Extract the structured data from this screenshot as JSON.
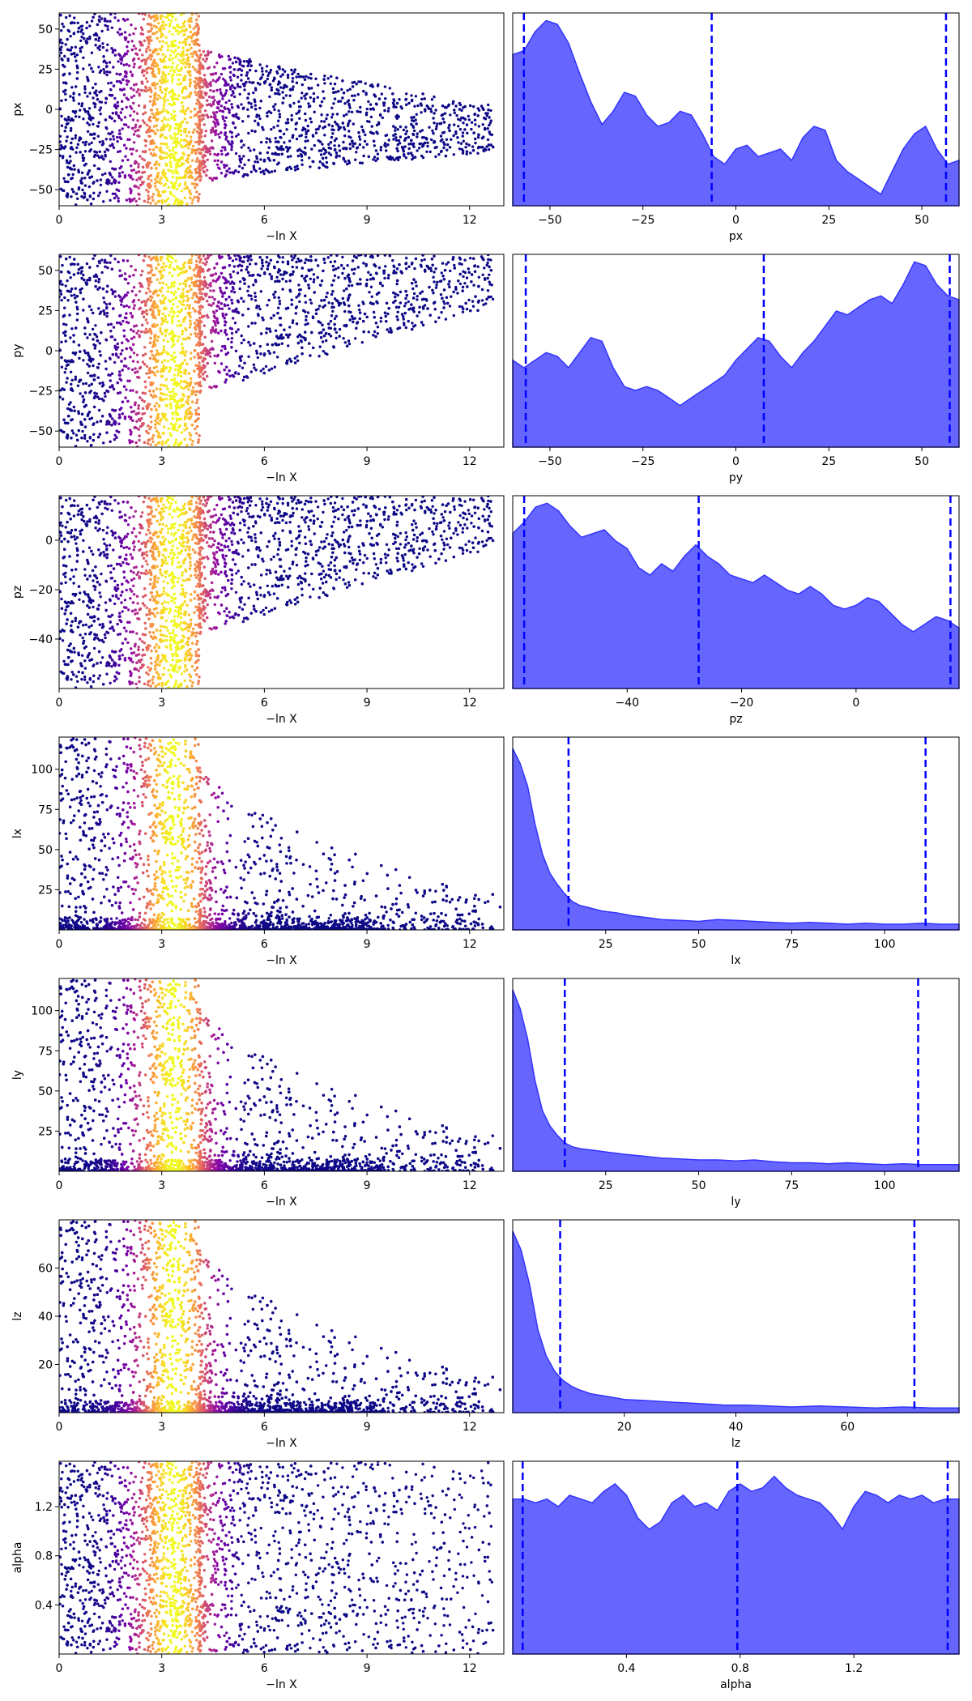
{
  "chart_data": {
    "type": "trace-plot",
    "trace_x_label": "−ln X",
    "trace_x_ticks": [
      0,
      3,
      6,
      9,
      12
    ],
    "trace_x_range": [
      0,
      13
    ],
    "colormap": "plasma",
    "quantile_line_color": "#0000ff",
    "density_fill_color": "#6666ff",
    "density_line_color": "#3333ff",
    "parameters": [
      {
        "name": "px",
        "range": [
          -60,
          60
        ],
        "ticks": [
          -50,
          -25,
          0,
          25,
          50
        ],
        "quantiles": [
          -57,
          -6.5,
          56.5
        ],
        "trace_shape": "symmetric",
        "density": [
          [
            -60,
            0.8
          ],
          [
            -57,
            0.82
          ],
          [
            -54,
            0.92
          ],
          [
            -51,
            0.98
          ],
          [
            -48,
            0.96
          ],
          [
            -45,
            0.86
          ],
          [
            -42,
            0.7
          ],
          [
            -39,
            0.55
          ],
          [
            -36,
            0.43
          ],
          [
            -33,
            0.5
          ],
          [
            -30,
            0.6
          ],
          [
            -27,
            0.58
          ],
          [
            -24,
            0.48
          ],
          [
            -21,
            0.42
          ],
          [
            -18,
            0.44
          ],
          [
            -15,
            0.5
          ],
          [
            -12,
            0.48
          ],
          [
            -9,
            0.38
          ],
          [
            -6,
            0.26
          ],
          [
            -3,
            0.22
          ],
          [
            0,
            0.3
          ],
          [
            3,
            0.32
          ],
          [
            6,
            0.26
          ],
          [
            9,
            0.28
          ],
          [
            12,
            0.3
          ],
          [
            15,
            0.24
          ],
          [
            18,
            0.36
          ],
          [
            21,
            0.42
          ],
          [
            24,
            0.4
          ],
          [
            27,
            0.24
          ],
          [
            30,
            0.18
          ],
          [
            33,
            0.14
          ],
          [
            36,
            0.1
          ],
          [
            39,
            0.06
          ],
          [
            42,
            0.18
          ],
          [
            45,
            0.3
          ],
          [
            48,
            0.38
          ],
          [
            51,
            0.42
          ],
          [
            54,
            0.3
          ],
          [
            57,
            0.22
          ],
          [
            60,
            0.24
          ]
        ]
      },
      {
        "name": "py",
        "range": [
          -60,
          60
        ],
        "ticks": [
          -50,
          -25,
          0,
          25,
          50
        ],
        "quantiles": [
          -56.5,
          7.5,
          57.5
        ],
        "trace_shape": "upper",
        "density": [
          [
            -60,
            0.46
          ],
          [
            -57,
            0.42
          ],
          [
            -54,
            0.46
          ],
          [
            -51,
            0.5
          ],
          [
            -48,
            0.48
          ],
          [
            -45,
            0.42
          ],
          [
            -42,
            0.5
          ],
          [
            -39,
            0.58
          ],
          [
            -36,
            0.56
          ],
          [
            -33,
            0.42
          ],
          [
            -30,
            0.32
          ],
          [
            -27,
            0.3
          ],
          [
            -24,
            0.32
          ],
          [
            -21,
            0.3
          ],
          [
            -18,
            0.26
          ],
          [
            -15,
            0.22
          ],
          [
            -12,
            0.26
          ],
          [
            -9,
            0.3
          ],
          [
            -6,
            0.34
          ],
          [
            -3,
            0.38
          ],
          [
            0,
            0.46
          ],
          [
            3,
            0.52
          ],
          [
            6,
            0.58
          ],
          [
            9,
            0.56
          ],
          [
            12,
            0.48
          ],
          [
            15,
            0.42
          ],
          [
            18,
            0.5
          ],
          [
            21,
            0.56
          ],
          [
            24,
            0.64
          ],
          [
            27,
            0.72
          ],
          [
            30,
            0.7
          ],
          [
            33,
            0.74
          ],
          [
            36,
            0.78
          ],
          [
            39,
            0.8
          ],
          [
            42,
            0.76
          ],
          [
            45,
            0.86
          ],
          [
            48,
            0.98
          ],
          [
            51,
            0.96
          ],
          [
            54,
            0.86
          ],
          [
            57,
            0.8
          ],
          [
            60,
            0.78
          ]
        ]
      },
      {
        "name": "pz",
        "range": [
          -60,
          18
        ],
        "ticks": [
          -40,
          -20,
          0
        ],
        "quantiles": [
          -58,
          -27.5,
          16.5
        ],
        "trace_shape": "upper",
        "density": [
          [
            -60,
            0.82
          ],
          [
            -58,
            0.88
          ],
          [
            -56,
            0.96
          ],
          [
            -54,
            0.98
          ],
          [
            -52,
            0.94
          ],
          [
            -50,
            0.86
          ],
          [
            -48,
            0.8
          ],
          [
            -46,
            0.82
          ],
          [
            -44,
            0.84
          ],
          [
            -42,
            0.78
          ],
          [
            -40,
            0.74
          ],
          [
            -38,
            0.64
          ],
          [
            -36,
            0.6
          ],
          [
            -34,
            0.66
          ],
          [
            -32,
            0.62
          ],
          [
            -30,
            0.7
          ],
          [
            -28,
            0.76
          ],
          [
            -26,
            0.7
          ],
          [
            -24,
            0.66
          ],
          [
            -22,
            0.6
          ],
          [
            -20,
            0.58
          ],
          [
            -18,
            0.56
          ],
          [
            -16,
            0.6
          ],
          [
            -14,
            0.56
          ],
          [
            -12,
            0.52
          ],
          [
            -10,
            0.5
          ],
          [
            -8,
            0.54
          ],
          [
            -6,
            0.5
          ],
          [
            -4,
            0.44
          ],
          [
            -2,
            0.42
          ],
          [
            0,
            0.44
          ],
          [
            2,
            0.48
          ],
          [
            4,
            0.46
          ],
          [
            6,
            0.4
          ],
          [
            8,
            0.34
          ],
          [
            10,
            0.3
          ],
          [
            12,
            0.34
          ],
          [
            14,
            0.38
          ],
          [
            16,
            0.36
          ],
          [
            18,
            0.32
          ]
        ]
      },
      {
        "name": "lx",
        "range": [
          0,
          120
        ],
        "ticks": [
          25,
          50,
          75,
          100
        ],
        "quantiles": [
          15,
          111
        ],
        "trace_shape": "decay",
        "density": [
          [
            0,
            0.96
          ],
          [
            2,
            0.88
          ],
          [
            4,
            0.76
          ],
          [
            6,
            0.56
          ],
          [
            8,
            0.4
          ],
          [
            10,
            0.3
          ],
          [
            12,
            0.24
          ],
          [
            14,
            0.19
          ],
          [
            16,
            0.15
          ],
          [
            18,
            0.13
          ],
          [
            20,
            0.12
          ],
          [
            24,
            0.1
          ],
          [
            28,
            0.09
          ],
          [
            32,
            0.075
          ],
          [
            36,
            0.065
          ],
          [
            40,
            0.055
          ],
          [
            45,
            0.05
          ],
          [
            50,
            0.045
          ],
          [
            55,
            0.055
          ],
          [
            60,
            0.05
          ],
          [
            65,
            0.045
          ],
          [
            70,
            0.04
          ],
          [
            75,
            0.035
          ],
          [
            80,
            0.04
          ],
          [
            85,
            0.035
          ],
          [
            90,
            0.03
          ],
          [
            95,
            0.035
          ],
          [
            100,
            0.03
          ],
          [
            105,
            0.03
          ],
          [
            110,
            0.035
          ],
          [
            115,
            0.03
          ],
          [
            120,
            0.03
          ]
        ]
      },
      {
        "name": "ly",
        "range": [
          0,
          120
        ],
        "ticks": [
          25,
          50,
          75,
          100
        ],
        "quantiles": [
          14,
          109
        ],
        "trace_shape": "decay",
        "density": [
          [
            0,
            0.96
          ],
          [
            2,
            0.86
          ],
          [
            4,
            0.7
          ],
          [
            6,
            0.48
          ],
          [
            8,
            0.32
          ],
          [
            10,
            0.24
          ],
          [
            12,
            0.19
          ],
          [
            14,
            0.15
          ],
          [
            16,
            0.13
          ],
          [
            18,
            0.12
          ],
          [
            22,
            0.11
          ],
          [
            26,
            0.1
          ],
          [
            30,
            0.09
          ],
          [
            35,
            0.08
          ],
          [
            40,
            0.07
          ],
          [
            45,
            0.065
          ],
          [
            50,
            0.06
          ],
          [
            55,
            0.06
          ],
          [
            60,
            0.055
          ],
          [
            65,
            0.06
          ],
          [
            70,
            0.05
          ],
          [
            75,
            0.045
          ],
          [
            80,
            0.045
          ],
          [
            85,
            0.04
          ],
          [
            90,
            0.045
          ],
          [
            95,
            0.04
          ],
          [
            100,
            0.035
          ],
          [
            105,
            0.04
          ],
          [
            110,
            0.035
          ],
          [
            115,
            0.035
          ],
          [
            120,
            0.035
          ]
        ]
      },
      {
        "name": "lz",
        "range": [
          0,
          80
        ],
        "ticks": [
          20,
          40,
          60
        ],
        "quantiles": [
          8.5,
          72
        ],
        "trace_shape": "decay",
        "density": [
          [
            0,
            0.96
          ],
          [
            1.5,
            0.86
          ],
          [
            3,
            0.68
          ],
          [
            4.5,
            0.44
          ],
          [
            6,
            0.3
          ],
          [
            7.5,
            0.22
          ],
          [
            9,
            0.17
          ],
          [
            10.5,
            0.14
          ],
          [
            12,
            0.12
          ],
          [
            14,
            0.1
          ],
          [
            16,
            0.09
          ],
          [
            18,
            0.08
          ],
          [
            20,
            0.07
          ],
          [
            23,
            0.065
          ],
          [
            26,
            0.06
          ],
          [
            29,
            0.055
          ],
          [
            32,
            0.05
          ],
          [
            35,
            0.045
          ],
          [
            38,
            0.04
          ],
          [
            42,
            0.04
          ],
          [
            46,
            0.035
          ],
          [
            50,
            0.03
          ],
          [
            55,
            0.035
          ],
          [
            60,
            0.03
          ],
          [
            65,
            0.025
          ],
          [
            70,
            0.03
          ],
          [
            75,
            0.025
          ],
          [
            80,
            0.025
          ]
        ]
      },
      {
        "name": "alpha",
        "range": [
          0,
          1.57
        ],
        "ticks": [
          0.4,
          0.8,
          1.2
        ],
        "quantiles": [
          0.035,
          0.79,
          1.53
        ],
        "trace_shape": "uniform",
        "density": [
          [
            0,
            0.82
          ],
          [
            0.04,
            0.82
          ],
          [
            0.08,
            0.8
          ],
          [
            0.12,
            0.82
          ],
          [
            0.16,
            0.78
          ],
          [
            0.2,
            0.84
          ],
          [
            0.24,
            0.82
          ],
          [
            0.28,
            0.8
          ],
          [
            0.32,
            0.86
          ],
          [
            0.36,
            0.9
          ],
          [
            0.4,
            0.84
          ],
          [
            0.44,
            0.72
          ],
          [
            0.48,
            0.66
          ],
          [
            0.52,
            0.7
          ],
          [
            0.56,
            0.8
          ],
          [
            0.6,
            0.84
          ],
          [
            0.64,
            0.78
          ],
          [
            0.68,
            0.8
          ],
          [
            0.72,
            0.76
          ],
          [
            0.76,
            0.86
          ],
          [
            0.8,
            0.9
          ],
          [
            0.84,
            0.86
          ],
          [
            0.88,
            0.88
          ],
          [
            0.92,
            0.94
          ],
          [
            0.96,
            0.88
          ],
          [
            1.0,
            0.84
          ],
          [
            1.04,
            0.82
          ],
          [
            1.08,
            0.8
          ],
          [
            1.12,
            0.74
          ],
          [
            1.16,
            0.66
          ],
          [
            1.2,
            0.78
          ],
          [
            1.24,
            0.86
          ],
          [
            1.28,
            0.84
          ],
          [
            1.32,
            0.8
          ],
          [
            1.36,
            0.84
          ],
          [
            1.4,
            0.82
          ],
          [
            1.44,
            0.84
          ],
          [
            1.48,
            0.8
          ],
          [
            1.52,
            0.82
          ],
          [
            1.57,
            0.82
          ]
        ]
      }
    ]
  }
}
